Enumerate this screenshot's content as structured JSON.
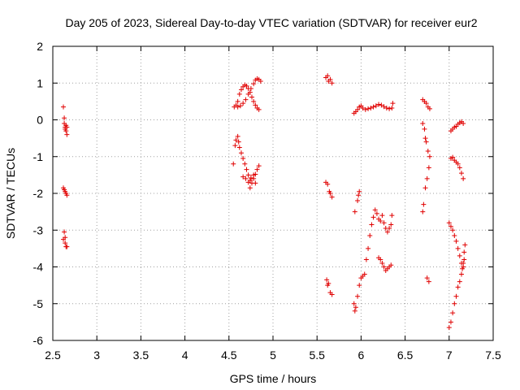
{
  "chart_data": {
    "type": "scatter",
    "title": "Day 205 of 2023, Sidereal Day-to-day VTEC variation (SDTVAR) for receiver eur2",
    "xlabel": "GPS time / hours",
    "ylabel": "SDTVAR / TECUs",
    "xlim": [
      2.5,
      7.5
    ],
    "ylim": [
      -6,
      2
    ],
    "xticks": [
      "2.5",
      "3",
      "3.5",
      "4",
      "4.5",
      "5",
      "5.5",
      "6",
      "6.5",
      "7",
      "7.5"
    ],
    "yticks": [
      "-6",
      "-5",
      "-4",
      "-3",
      "-2",
      "-1",
      "0",
      "1",
      "2"
    ],
    "grid": true,
    "marker": "plus",
    "color": "#e00000",
    "series": [
      {
        "name": "SDTVAR",
        "points": [
          [
            2.62,
            0.35
          ],
          [
            2.63,
            0.05
          ],
          [
            2.63,
            -0.1
          ],
          [
            2.64,
            -0.2
          ],
          [
            2.64,
            -0.25
          ],
          [
            2.65,
            -0.15
          ],
          [
            2.65,
            -0.3
          ],
          [
            2.66,
            -0.4
          ],
          [
            2.66,
            -0.2
          ],
          [
            2.62,
            -1.85
          ],
          [
            2.63,
            -1.9
          ],
          [
            2.64,
            -1.95
          ],
          [
            2.65,
            -2.0
          ],
          [
            2.66,
            -2.05
          ],
          [
            2.62,
            -3.25
          ],
          [
            2.63,
            -3.05
          ],
          [
            2.64,
            -3.2
          ],
          [
            2.64,
            -3.35
          ],
          [
            2.65,
            -3.45
          ],
          [
            2.66,
            -3.45
          ],
          [
            4.56,
            0.35
          ],
          [
            4.58,
            0.4
          ],
          [
            4.6,
            0.5
          ],
          [
            4.62,
            0.7
          ],
          [
            4.64,
            0.82
          ],
          [
            4.66,
            0.9
          ],
          [
            4.68,
            0.95
          ],
          [
            4.7,
            0.92
          ],
          [
            4.72,
            0.85
          ],
          [
            4.74,
            0.75
          ],
          [
            4.76,
            0.62
          ],
          [
            4.78,
            0.5
          ],
          [
            4.8,
            0.4
          ],
          [
            4.82,
            0.32
          ],
          [
            4.84,
            0.28
          ],
          [
            4.6,
            0.35
          ],
          [
            4.63,
            0.38
          ],
          [
            4.66,
            0.45
          ],
          [
            4.69,
            0.55
          ],
          [
            4.72,
            0.7
          ],
          [
            4.75,
            0.85
          ],
          [
            4.78,
            0.98
          ],
          [
            4.8,
            1.08
          ],
          [
            4.82,
            1.12
          ],
          [
            4.84,
            1.1
          ],
          [
            4.86,
            1.05
          ],
          [
            4.55,
            -1.2
          ],
          [
            4.57,
            -0.7
          ],
          [
            4.58,
            -0.55
          ],
          [
            4.6,
            -0.45
          ],
          [
            4.61,
            -0.6
          ],
          [
            4.62,
            -0.75
          ],
          [
            4.64,
            -0.9
          ],
          [
            4.66,
            -1.05
          ],
          [
            4.68,
            -1.2
          ],
          [
            4.7,
            -1.35
          ],
          [
            4.72,
            -1.5
          ],
          [
            4.74,
            -1.65
          ],
          [
            4.76,
            -1.72
          ],
          [
            4.78,
            -1.6
          ],
          [
            4.8,
            -1.48
          ],
          [
            4.82,
            -1.35
          ],
          [
            4.84,
            -1.25
          ],
          [
            4.66,
            -1.55
          ],
          [
            4.69,
            -1.6
          ],
          [
            4.72,
            -1.7
          ],
          [
            4.75,
            -1.58
          ],
          [
            4.78,
            -1.5
          ],
          [
            4.8,
            -1.72
          ],
          [
            4.74,
            -1.85
          ],
          [
            5.6,
            1.15
          ],
          [
            5.62,
            1.2
          ],
          [
            5.63,
            1.05
          ],
          [
            5.65,
            1.1
          ],
          [
            5.67,
            1.0
          ],
          [
            5.6,
            -1.7
          ],
          [
            5.62,
            -1.75
          ],
          [
            5.64,
            -1.95
          ],
          [
            5.65,
            -2.0
          ],
          [
            5.67,
            -2.1
          ],
          [
            5.61,
            -4.35
          ],
          [
            5.62,
            -4.5
          ],
          [
            5.63,
            -4.45
          ],
          [
            5.65,
            -4.7
          ],
          [
            5.67,
            -4.75
          ],
          [
            5.92,
            0.18
          ],
          [
            5.94,
            0.22
          ],
          [
            5.96,
            0.28
          ],
          [
            5.98,
            0.35
          ],
          [
            6.0,
            0.38
          ],
          [
            6.02,
            0.32
          ],
          [
            6.05,
            0.28
          ],
          [
            6.08,
            0.3
          ],
          [
            6.11,
            0.32
          ],
          [
            6.14,
            0.35
          ],
          [
            6.17,
            0.38
          ],
          [
            6.2,
            0.42
          ],
          [
            6.23,
            0.4
          ],
          [
            6.26,
            0.36
          ],
          [
            6.29,
            0.32
          ],
          [
            6.32,
            0.3
          ],
          [
            6.35,
            0.32
          ],
          [
            6.36,
            0.45
          ],
          [
            5.93,
            -2.5
          ],
          [
            5.96,
            -2.2
          ],
          [
            5.97,
            -2.05
          ],
          [
            5.98,
            -1.95
          ],
          [
            5.92,
            -5.0
          ],
          [
            5.93,
            -5.2
          ],
          [
            5.94,
            -5.1
          ],
          [
            5.96,
            -4.8
          ],
          [
            5.98,
            -4.5
          ],
          [
            6.0,
            -4.3
          ],
          [
            6.02,
            -4.25
          ],
          [
            6.04,
            -4.2
          ],
          [
            6.06,
            -3.8
          ],
          [
            6.08,
            -3.5
          ],
          [
            6.1,
            -3.15
          ],
          [
            6.12,
            -2.85
          ],
          [
            6.14,
            -2.65
          ],
          [
            6.16,
            -2.45
          ],
          [
            6.18,
            -2.55
          ],
          [
            6.2,
            -2.7
          ],
          [
            6.22,
            -2.75
          ],
          [
            6.24,
            -2.6
          ],
          [
            6.26,
            -2.8
          ],
          [
            6.28,
            -2.95
          ],
          [
            6.3,
            -3.05
          ],
          [
            6.32,
            -2.95
          ],
          [
            6.34,
            -2.85
          ],
          [
            6.35,
            -2.6
          ],
          [
            6.2,
            -3.75
          ],
          [
            6.22,
            -3.8
          ],
          [
            6.24,
            -3.9
          ],
          [
            6.26,
            -4.0
          ],
          [
            6.28,
            -4.1
          ],
          [
            6.3,
            -4.05
          ],
          [
            6.32,
            -4.0
          ],
          [
            6.34,
            -3.95
          ],
          [
            6.7,
            0.55
          ],
          [
            6.72,
            0.5
          ],
          [
            6.74,
            0.45
          ],
          [
            6.76,
            0.35
          ],
          [
            6.78,
            0.3
          ],
          [
            6.7,
            -0.1
          ],
          [
            6.72,
            -0.25
          ],
          [
            6.73,
            -0.5
          ],
          [
            6.74,
            -0.6
          ],
          [
            6.76,
            -0.85
          ],
          [
            6.78,
            -1.0
          ],
          [
            6.77,
            -1.3
          ],
          [
            6.75,
            -1.6
          ],
          [
            6.73,
            -1.85
          ],
          [
            6.71,
            -2.3
          ],
          [
            6.7,
            -2.5
          ],
          [
            6.75,
            -4.3
          ],
          [
            6.77,
            -4.4
          ],
          [
            7.02,
            -0.3
          ],
          [
            7.04,
            -0.25
          ],
          [
            7.06,
            -0.2
          ],
          [
            7.08,
            -0.18
          ],
          [
            7.1,
            -0.12
          ],
          [
            7.12,
            -0.08
          ],
          [
            7.14,
            -0.05
          ],
          [
            7.16,
            -0.1
          ],
          [
            7.02,
            -1.05
          ],
          [
            7.04,
            -1.02
          ],
          [
            7.06,
            -1.1
          ],
          [
            7.08,
            -1.15
          ],
          [
            7.1,
            -1.2
          ],
          [
            7.12,
            -1.3
          ],
          [
            7.14,
            -1.45
          ],
          [
            7.16,
            -1.6
          ],
          [
            7.0,
            -2.8
          ],
          [
            7.02,
            -2.9
          ],
          [
            7.04,
            -3.0
          ],
          [
            7.06,
            -3.15
          ],
          [
            7.08,
            -3.3
          ],
          [
            7.1,
            -3.5
          ],
          [
            7.12,
            -3.7
          ],
          [
            7.14,
            -3.9
          ],
          [
            7.16,
            -4.0
          ],
          [
            7.17,
            -3.6
          ],
          [
            7.18,
            -3.4
          ],
          [
            7.0,
            -5.65
          ],
          [
            7.02,
            -5.5
          ],
          [
            7.04,
            -5.25
          ],
          [
            7.06,
            -5.0
          ],
          [
            7.08,
            -4.8
          ],
          [
            7.1,
            -4.55
          ],
          [
            7.12,
            -4.4
          ],
          [
            7.14,
            -4.2
          ],
          [
            7.16,
            -3.9
          ],
          [
            7.17,
            -3.8
          ],
          [
            7.15,
            -4.05
          ]
        ]
      }
    ]
  }
}
